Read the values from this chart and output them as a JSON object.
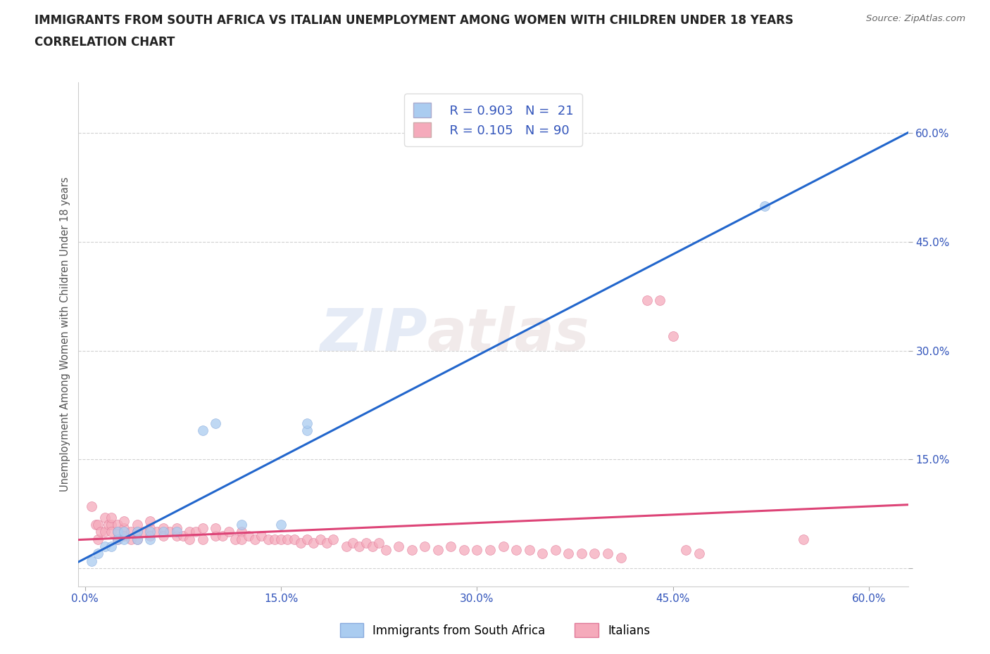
{
  "title_line1": "IMMIGRANTS FROM SOUTH AFRICA VS ITALIAN UNEMPLOYMENT AMONG WOMEN WITH CHILDREN UNDER 18 YEARS",
  "title_line2": "CORRELATION CHART",
  "source_text": "Source: ZipAtlas.com",
  "ylabel": "Unemployment Among Women with Children Under 18 years",
  "xlim": [
    -0.005,
    0.63
  ],
  "ylim": [
    -0.025,
    0.67
  ],
  "xticks": [
    0.0,
    0.15,
    0.3,
    0.45,
    0.6
  ],
  "yticks": [
    0.0,
    0.15,
    0.3,
    0.45,
    0.6
  ],
  "xtick_labels": [
    "0.0%",
    "15.0%",
    "30.0%",
    "45.0%",
    "60.0%"
  ],
  "ytick_labels_right": [
    "",
    "15.0%",
    "30.0%",
    "45.0%",
    "60.0%"
  ],
  "blue_color": "#aaccf0",
  "blue_edge": "#88aadd",
  "pink_color": "#f5aabb",
  "pink_edge": "#e07898",
  "blue_line_color": "#2266cc",
  "pink_line_color": "#dd4477",
  "legend_blue_R": "0.903",
  "legend_blue_N": "21",
  "legend_pink_R": "0.105",
  "legend_pink_N": "90",
  "legend_label_blue": "Immigrants from South Africa",
  "legend_label_pink": "Italians",
  "watermark_zip": "ZIP",
  "watermark_atlas": "atlas",
  "blue_scatter_x": [
    0.005,
    0.01,
    0.015,
    0.02,
    0.025,
    0.025,
    0.03,
    0.03,
    0.04,
    0.04,
    0.05,
    0.05,
    0.06,
    0.07,
    0.09,
    0.1,
    0.12,
    0.15,
    0.17,
    0.17,
    0.52
  ],
  "blue_scatter_y": [
    0.01,
    0.02,
    0.03,
    0.03,
    0.04,
    0.05,
    0.04,
    0.05,
    0.04,
    0.05,
    0.04,
    0.05,
    0.05,
    0.05,
    0.19,
    0.2,
    0.06,
    0.06,
    0.19,
    0.2,
    0.5
  ],
  "pink_scatter_x": [
    0.005,
    0.008,
    0.01,
    0.01,
    0.012,
    0.015,
    0.015,
    0.018,
    0.02,
    0.02,
    0.02,
    0.025,
    0.025,
    0.025,
    0.03,
    0.03,
    0.03,
    0.035,
    0.035,
    0.04,
    0.04,
    0.04,
    0.045,
    0.05,
    0.05,
    0.05,
    0.055,
    0.06,
    0.06,
    0.065,
    0.07,
    0.07,
    0.075,
    0.08,
    0.08,
    0.085,
    0.09,
    0.09,
    0.1,
    0.1,
    0.105,
    0.11,
    0.115,
    0.12,
    0.12,
    0.125,
    0.13,
    0.135,
    0.14,
    0.145,
    0.15,
    0.155,
    0.16,
    0.165,
    0.17,
    0.175,
    0.18,
    0.185,
    0.19,
    0.2,
    0.205,
    0.21,
    0.215,
    0.22,
    0.225,
    0.23,
    0.24,
    0.25,
    0.26,
    0.27,
    0.28,
    0.29,
    0.3,
    0.31,
    0.32,
    0.33,
    0.34,
    0.35,
    0.36,
    0.37,
    0.38,
    0.39,
    0.4,
    0.41,
    0.43,
    0.44,
    0.45,
    0.46,
    0.47,
    0.55
  ],
  "pink_scatter_y": [
    0.085,
    0.06,
    0.06,
    0.04,
    0.05,
    0.07,
    0.05,
    0.06,
    0.06,
    0.05,
    0.07,
    0.05,
    0.06,
    0.04,
    0.055,
    0.045,
    0.065,
    0.05,
    0.04,
    0.05,
    0.04,
    0.06,
    0.05,
    0.055,
    0.045,
    0.065,
    0.05,
    0.055,
    0.045,
    0.05,
    0.045,
    0.055,
    0.045,
    0.05,
    0.04,
    0.05,
    0.04,
    0.055,
    0.045,
    0.055,
    0.045,
    0.05,
    0.04,
    0.05,
    0.04,
    0.045,
    0.04,
    0.045,
    0.04,
    0.04,
    0.04,
    0.04,
    0.04,
    0.035,
    0.04,
    0.035,
    0.04,
    0.035,
    0.04,
    0.03,
    0.035,
    0.03,
    0.035,
    0.03,
    0.035,
    0.025,
    0.03,
    0.025,
    0.03,
    0.025,
    0.03,
    0.025,
    0.025,
    0.025,
    0.03,
    0.025,
    0.025,
    0.02,
    0.025,
    0.02,
    0.02,
    0.02,
    0.02,
    0.015,
    0.37,
    0.37,
    0.32,
    0.025,
    0.02,
    0.04
  ]
}
